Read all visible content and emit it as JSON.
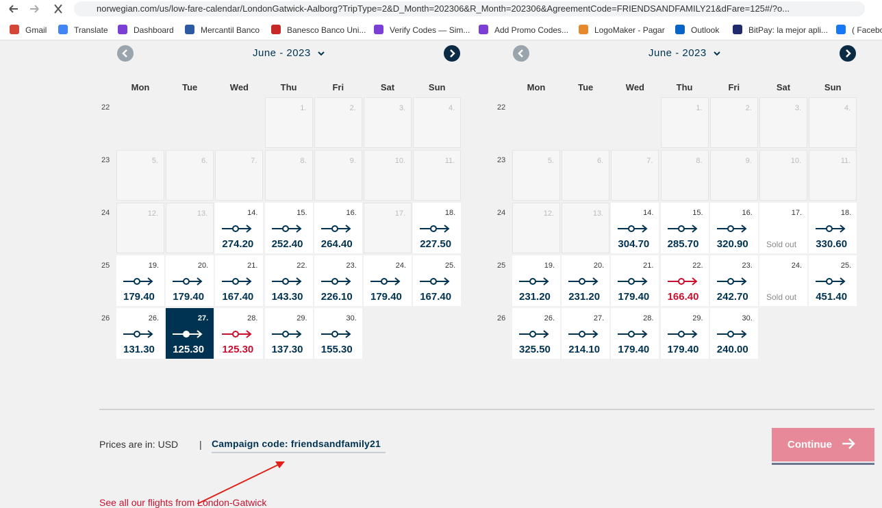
{
  "browser": {
    "url": "norwegian.com/us/low-fare-calendar/LondonGatwick-Aalborg?TripType=2&D_Month=202306&R_Month=202306&AgreementCode=FRIENDSANDFAMILY21&dFare=125#/?o...",
    "bookmarks": [
      "Gmail",
      "Translate",
      "Dashboard",
      "Mercantil Banco",
      "Banesco Banco Uni...",
      "Verify Codes — Sim...",
      "Add Promo Codes...",
      "LogoMaker - Pagar",
      "Outlook",
      "BitPay: la mejor apli...",
      "( Facebo"
    ]
  },
  "calendars": [
    {
      "month": "June - 2023",
      "weekdays": [
        "Mon",
        "Tue",
        "Wed",
        "Thu",
        "Fri",
        "Sat",
        "Sun"
      ],
      "weeks": [
        {
          "number": "22",
          "days": [
            null,
            null,
            null,
            {
              "day": "1.",
              "state": "past"
            },
            {
              "day": "2.",
              "state": "past"
            },
            {
              "day": "3.",
              "state": "past"
            },
            {
              "day": "4.",
              "state": "past"
            }
          ]
        },
        {
          "number": "23",
          "days": [
            {
              "day": "5.",
              "state": "past"
            },
            {
              "day": "6.",
              "state": "past"
            },
            {
              "day": "7.",
              "state": "past"
            },
            {
              "day": "8.",
              "state": "past"
            },
            {
              "day": "9.",
              "state": "past"
            },
            {
              "day": "10.",
              "state": "past"
            },
            {
              "day": "11.",
              "state": "past"
            }
          ]
        },
        {
          "number": "24",
          "days": [
            {
              "day": "12.",
              "state": "past"
            },
            {
              "day": "13.",
              "state": "past"
            },
            {
              "day": "14.",
              "price": "274.20",
              "state": "fare"
            },
            {
              "day": "15.",
              "price": "252.40",
              "state": "fare"
            },
            {
              "day": "16.",
              "price": "264.40",
              "state": "fare"
            },
            {
              "day": "17.",
              "state": "past"
            },
            {
              "day": "18.",
              "price": "227.50",
              "state": "fare"
            }
          ]
        },
        {
          "number": "25",
          "days": [
            {
              "day": "19.",
              "price": "179.40",
              "state": "fare"
            },
            {
              "day": "20.",
              "price": "179.40",
              "state": "fare"
            },
            {
              "day": "21.",
              "price": "167.40",
              "state": "fare"
            },
            {
              "day": "22.",
              "price": "143.30",
              "state": "fare"
            },
            {
              "day": "23.",
              "price": "226.10",
              "state": "fare"
            },
            {
              "day": "24.",
              "price": "179.40",
              "state": "fare"
            },
            {
              "day": "25.",
              "price": "167.40",
              "state": "fare"
            }
          ]
        },
        {
          "number": "26",
          "days": [
            {
              "day": "26.",
              "price": "131.30",
              "state": "fare"
            },
            {
              "day": "27.",
              "price": "125.30",
              "state": "selected"
            },
            {
              "day": "28.",
              "price": "125.30",
              "state": "low"
            },
            {
              "day": "29.",
              "price": "137.30",
              "state": "fare"
            },
            {
              "day": "30.",
              "price": "155.30",
              "state": "fare"
            },
            null,
            null
          ]
        }
      ]
    },
    {
      "month": "June - 2023",
      "weekdays": [
        "Mon",
        "Tue",
        "Wed",
        "Thu",
        "Fri",
        "Sat",
        "Sun"
      ],
      "weeks": [
        {
          "number": "22",
          "days": [
            null,
            null,
            null,
            {
              "day": "1.",
              "state": "past"
            },
            {
              "day": "2.",
              "state": "past"
            },
            {
              "day": "3.",
              "state": "past"
            },
            {
              "day": "4.",
              "state": "past"
            }
          ]
        },
        {
          "number": "23",
          "days": [
            {
              "day": "5.",
              "state": "past"
            },
            {
              "day": "6.",
              "state": "past"
            },
            {
              "day": "7.",
              "state": "past"
            },
            {
              "day": "8.",
              "state": "past"
            },
            {
              "day": "9.",
              "state": "past"
            },
            {
              "day": "10.",
              "state": "past"
            },
            {
              "day": "11.",
              "state": "past"
            }
          ]
        },
        {
          "number": "24",
          "days": [
            {
              "day": "12.",
              "state": "past"
            },
            {
              "day": "13.",
              "state": "past"
            },
            {
              "day": "14.",
              "price": "304.70",
              "state": "fare"
            },
            {
              "day": "15.",
              "price": "285.70",
              "state": "fare"
            },
            {
              "day": "16.",
              "price": "320.90",
              "state": "fare"
            },
            {
              "day": "17.",
              "price": "Sold out",
              "state": "soldout"
            },
            {
              "day": "18.",
              "price": "330.60",
              "state": "fare"
            }
          ]
        },
        {
          "number": "25",
          "days": [
            {
              "day": "19.",
              "price": "231.20",
              "state": "fare"
            },
            {
              "day": "20.",
              "price": "231.20",
              "state": "fare"
            },
            {
              "day": "21.",
              "price": "179.40",
              "state": "fare"
            },
            {
              "day": "22.",
              "price": "166.40",
              "state": "low"
            },
            {
              "day": "23.",
              "price": "242.70",
              "state": "fare"
            },
            {
              "day": "24.",
              "price": "Sold out",
              "state": "soldout"
            },
            {
              "day": "25.",
              "price": "451.40",
              "state": "fare"
            }
          ]
        },
        {
          "number": "26",
          "days": [
            {
              "day": "26.",
              "price": "325.50",
              "state": "fare"
            },
            {
              "day": "27.",
              "price": "214.10",
              "state": "fare"
            },
            {
              "day": "28.",
              "price": "179.40",
              "state": "fare"
            },
            {
              "day": "29.",
              "price": "179.40",
              "state": "fare"
            },
            {
              "day": "30.",
              "price": "240.00",
              "state": "fare"
            },
            null,
            null
          ]
        }
      ]
    }
  ],
  "footer": {
    "currency": "Prices are in: USD",
    "separator": "|",
    "campaign": "Campaign code: friendsandfamily21",
    "button": "Continue",
    "link": "See all our flights from London-Gatwick"
  }
}
